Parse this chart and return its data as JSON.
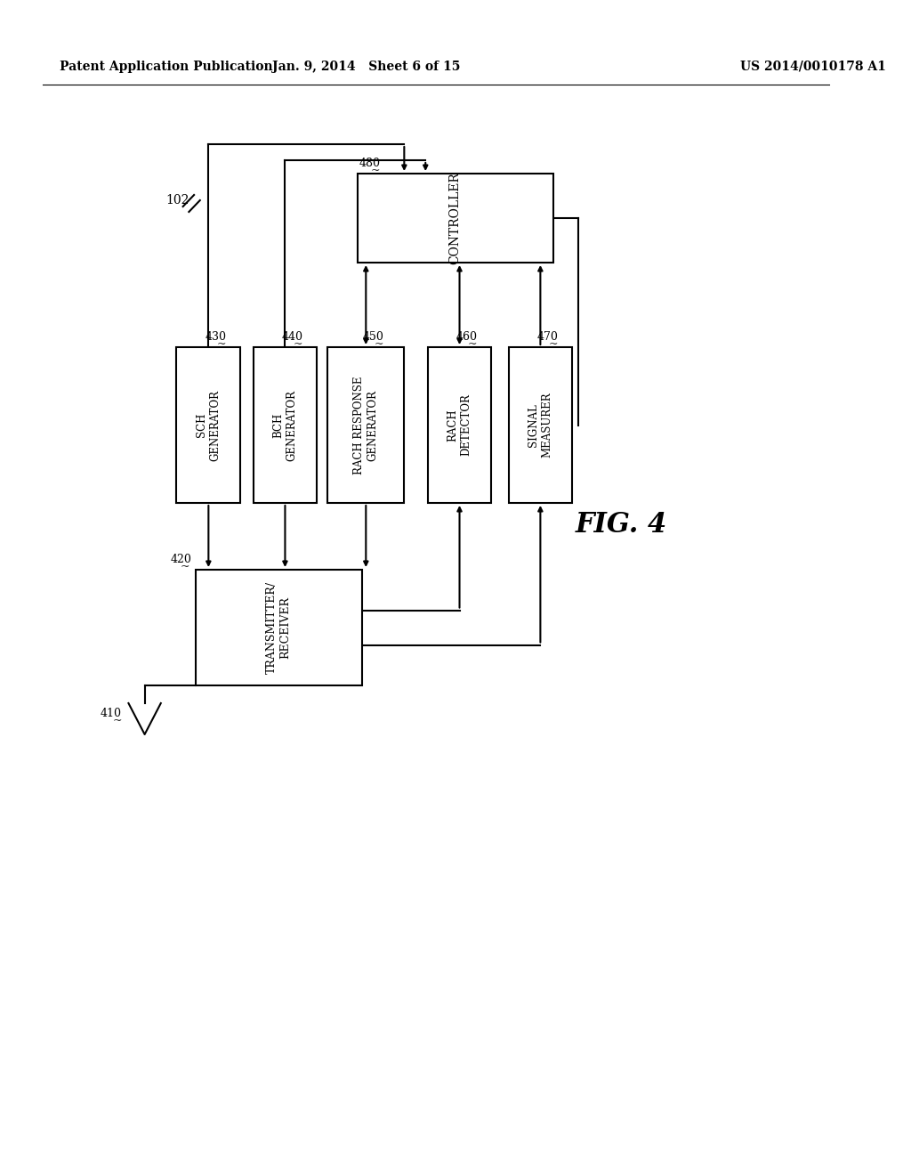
{
  "bg_color": "#ffffff",
  "header_left": "Patent Application Publication",
  "header_mid": "Jan. 9, 2014   Sheet 6 of 15",
  "header_right": "US 2014/0010178 A1",
  "fig_label": "FIG. 4",
  "line_color": "#000000",
  "text_color": "#000000"
}
